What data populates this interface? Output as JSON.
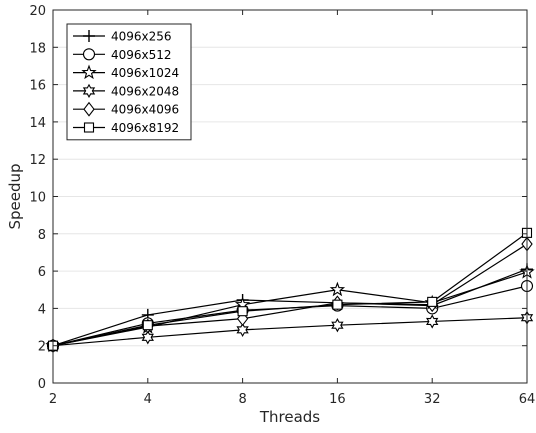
{
  "chart_data": {
    "type": "line",
    "title": "",
    "xlabel": "Threads",
    "ylabel": "Speedup",
    "x": [
      2,
      4,
      8,
      16,
      32,
      64
    ],
    "x_ticks": [
      "2",
      "4",
      "8",
      "16",
      "32",
      "64"
    ],
    "x_scale": "log2",
    "ylim": [
      0,
      20
    ],
    "y_ticks": [
      "0",
      "2",
      "4",
      "6",
      "8",
      "10",
      "12",
      "14",
      "16",
      "18",
      "20"
    ],
    "grid": "y",
    "legend_position": "top-left",
    "series": [
      {
        "name": "4096x256",
        "marker": "plus",
        "values": [
          2.0,
          3.65,
          4.45,
          4.3,
          4.15,
          6.1
        ]
      },
      {
        "name": "4096x512",
        "marker": "circle",
        "values": [
          2.0,
          3.2,
          3.9,
          4.15,
          4.0,
          5.2
        ]
      },
      {
        "name": "4096x1024",
        "marker": "pentagram",
        "values": [
          2.0,
          3.0,
          4.2,
          5.0,
          4.3,
          5.95
        ]
      },
      {
        "name": "4096x2048",
        "marker": "hexagram",
        "values": [
          2.0,
          2.45,
          2.85,
          3.1,
          3.3,
          3.5
        ]
      },
      {
        "name": "4096x4096",
        "marker": "diamond",
        "values": [
          2.0,
          3.05,
          3.45,
          4.3,
          4.2,
          7.45
        ]
      },
      {
        "name": "4096x8192",
        "marker": "square",
        "values": [
          2.0,
          3.1,
          3.85,
          4.2,
          4.35,
          8.05
        ]
      }
    ]
  }
}
